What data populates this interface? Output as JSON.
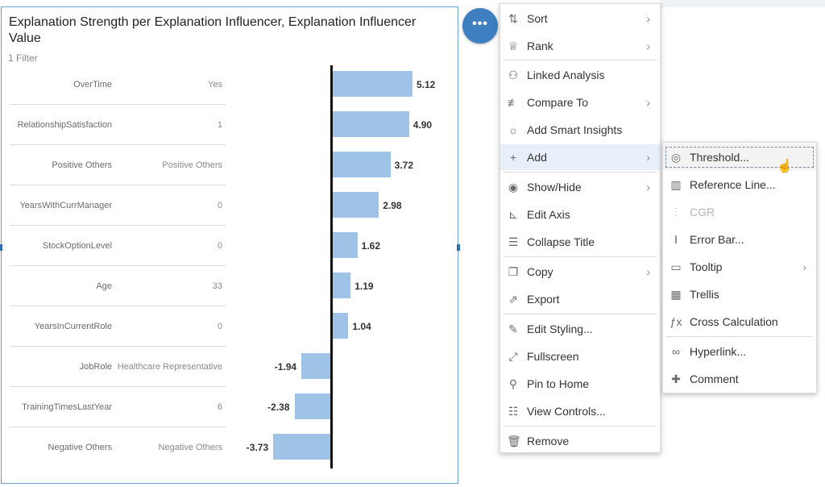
{
  "chart": {
    "title": "Explanation Strength per Explanation Influencer, Explanation Influencer Value",
    "filter_label": "1 Filter"
  },
  "chart_data": {
    "type": "bar",
    "orientation": "horizontal",
    "title": "Explanation Strength per Explanation Influencer, Explanation Influencer Value",
    "categories": [
      [
        "OverTime",
        "Yes"
      ],
      [
        "RelationshipSatisfaction",
        "1"
      ],
      [
        "Positive Others",
        "Positive Others"
      ],
      [
        "YearsWithCurrManager",
        "0"
      ],
      [
        "StockOptionLevel",
        "0"
      ],
      [
        "Age",
        "33"
      ],
      [
        "YearsInCurrentRole",
        "0"
      ],
      [
        "JobRole",
        "Healthcare Representative"
      ],
      [
        "TrainingTimesLastYear",
        "6"
      ],
      [
        "Negative Others",
        "Negative Others"
      ]
    ],
    "values": [
      5.12,
      4.9,
      3.72,
      2.98,
      1.62,
      1.19,
      1.04,
      -1.94,
      -2.38,
      -3.73
    ],
    "value_labels": [
      "5.12",
      "4.90",
      "3.72",
      "2.98",
      "1.62",
      "1.19",
      "1.04",
      "-1.94",
      "-2.38",
      "-3.73"
    ],
    "bar_color": "#9fc3e7",
    "grid": false
  },
  "more_button": {
    "label": "•••",
    "color": "#3d7fc1"
  },
  "context_menu": {
    "items": [
      {
        "label": "Sort",
        "icon": "sort-arrows-icon",
        "glyph": "⇅",
        "has_submenu": true
      },
      {
        "label": "Rank",
        "icon": "trophy-icon",
        "glyph": "♕",
        "has_submenu": true
      },
      {
        "label": "Linked Analysis",
        "icon": "linked-nodes-icon",
        "glyph": "⚇",
        "has_submenu": false
      },
      {
        "label": "Compare To",
        "icon": "compare-icon",
        "glyph": "≢",
        "has_submenu": true
      },
      {
        "label": "Add Smart Insights",
        "icon": "lightbulb-icon",
        "glyph": "☼",
        "has_submenu": false
      },
      {
        "label": "Add",
        "icon": "plus-icon",
        "glyph": "+",
        "has_submenu": true,
        "active": true
      },
      {
        "label": "Show/Hide",
        "icon": "eye-icon",
        "glyph": "◉",
        "has_submenu": true
      },
      {
        "label": "Edit Axis",
        "icon": "axis-icon",
        "glyph": "⊾",
        "has_submenu": false
      },
      {
        "label": "Collapse Title",
        "icon": "collapse-title-icon",
        "glyph": "☰",
        "has_submenu": false
      },
      {
        "label": "Copy",
        "icon": "copy-icon",
        "glyph": "❐",
        "has_submenu": true
      },
      {
        "label": "Export",
        "icon": "export-icon",
        "glyph": "⇗",
        "has_submenu": false
      },
      {
        "label": "Edit Styling...",
        "icon": "paint-brush-icon",
        "glyph": "✎",
        "has_submenu": false
      },
      {
        "label": "Fullscreen",
        "icon": "fullscreen-icon",
        "glyph": "⤢",
        "has_submenu": false
      },
      {
        "label": "Pin to Home",
        "icon": "pin-icon",
        "glyph": "⚲",
        "has_submenu": false
      },
      {
        "label": "View Controls...",
        "icon": "sliders-icon",
        "glyph": "☷",
        "has_submenu": false
      },
      {
        "label": "Remove",
        "icon": "trash-icon",
        "glyph": "🗑",
        "has_submenu": false
      }
    ]
  },
  "add_submenu": {
    "items": [
      {
        "label": "Threshold...",
        "icon": "threshold-target-icon",
        "glyph": "◎",
        "focused": true
      },
      {
        "label": "Reference Line...",
        "icon": "reference-line-icon",
        "glyph": "▥"
      },
      {
        "label": "CGR",
        "icon": "cgr-icon",
        "glyph": "⫶",
        "disabled": true
      },
      {
        "label": "Error Bar...",
        "icon": "error-bar-icon",
        "glyph": "Ⅰ"
      },
      {
        "label": "Tooltip",
        "icon": "tooltip-icon",
        "glyph": "▭",
        "has_submenu": true
      },
      {
        "label": "Trellis",
        "icon": "trellis-grid-icon",
        "glyph": "▦"
      },
      {
        "label": "Cross Calculation",
        "icon": "function-icon",
        "glyph": "ƒx"
      },
      {
        "label": "Hyperlink...",
        "icon": "link-icon",
        "glyph": "∞"
      },
      {
        "label": "Comment",
        "icon": "comment-icon",
        "glyph": "✚"
      }
    ]
  },
  "chevron_glyph": "›",
  "cursor_glyph": "☝"
}
